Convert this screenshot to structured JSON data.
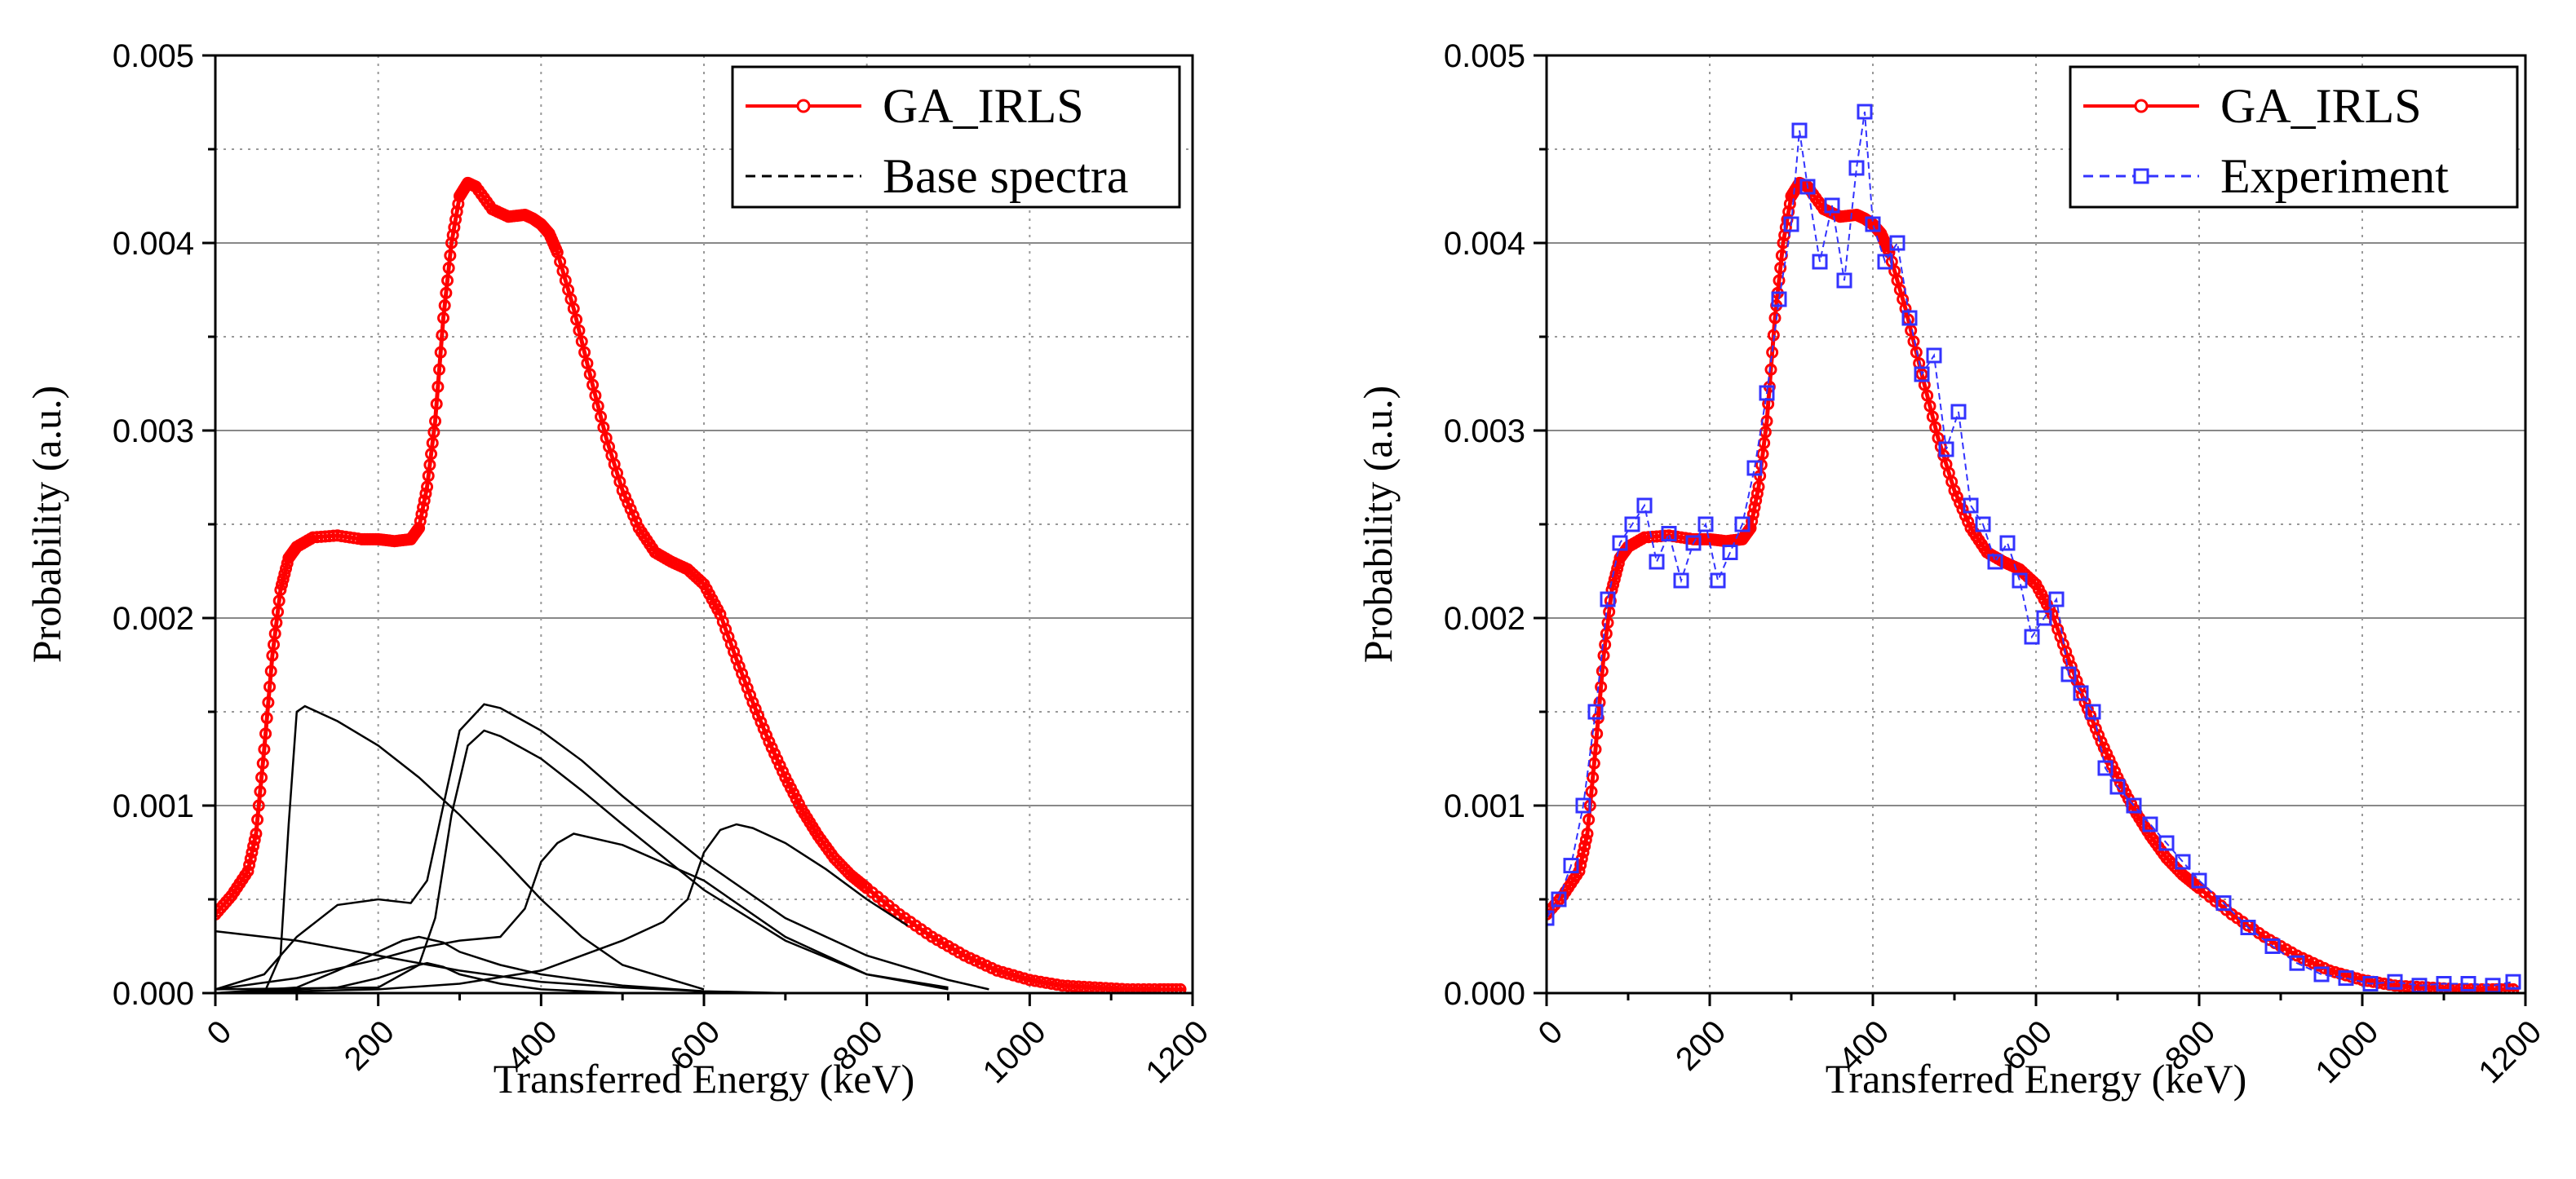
{
  "chart_data": [
    {
      "type": "line",
      "id": "left",
      "xlabel": "Transferred Energy (keV)",
      "ylabel": "Probability (a.u.)",
      "xlim": [
        0,
        1200
      ],
      "ylim": [
        0,
        0.005
      ],
      "xticks": [
        "0",
        "200",
        "400",
        "600",
        "800",
        "1000",
        "1200"
      ],
      "yticks": [
        "0.000",
        "0.001",
        "0.002",
        "0.003",
        "0.004",
        "0.005"
      ],
      "grid": true,
      "legend_position": "top-right",
      "legend": [
        {
          "label": "GA_IRLS",
          "style": "red-line-circle"
        },
        {
          "label": "Base spectra",
          "style": "black-dashed"
        }
      ],
      "series": [
        {
          "name": "GA_IRLS",
          "color": "#ff0000",
          "x": [
            0,
            20,
            40,
            50,
            60,
            70,
            80,
            90,
            100,
            120,
            150,
            180,
            200,
            220,
            240,
            250,
            260,
            270,
            280,
            290,
            300,
            310,
            320,
            340,
            360,
            380,
            390,
            400,
            410,
            420,
            440,
            460,
            480,
            500,
            520,
            540,
            560,
            580,
            600,
            620,
            640,
            660,
            680,
            700,
            720,
            740,
            760,
            780,
            800,
            840,
            880,
            920,
            960,
            1000,
            1040,
            1080,
            1120,
            1160,
            1190
          ],
          "y": [
            0.00042,
            0.00052,
            0.00065,
            0.00085,
            0.0013,
            0.0018,
            0.00215,
            0.00232,
            0.00238,
            0.00243,
            0.00244,
            0.00242,
            0.00242,
            0.00241,
            0.00242,
            0.00248,
            0.0027,
            0.00305,
            0.0036,
            0.004,
            0.00425,
            0.00432,
            0.0043,
            0.00418,
            0.00414,
            0.00415,
            0.00413,
            0.0041,
            0.00405,
            0.00395,
            0.00365,
            0.0033,
            0.00296,
            0.00268,
            0.00248,
            0.00235,
            0.0023,
            0.00226,
            0.00218,
            0.00202,
            0.00178,
            0.00155,
            0.00134,
            0.00115,
            0.00098,
            0.00084,
            0.00072,
            0.00063,
            0.00056,
            0.00042,
            0.0003,
            0.0002,
            0.00012,
            7e-05,
            4e-05,
            3e-05,
            2e-05,
            2e-05,
            2e-05
          ]
        },
        {
          "name": "Base spectrum 1",
          "color": "#000000",
          "x": [
            0,
            60,
            80,
            90,
            100,
            110,
            150,
            200,
            250,
            300,
            350,
            400,
            450,
            500,
            600
          ],
          "y": [
            0,
            0,
            0.0002,
            0.0009,
            0.0015,
            0.00153,
            0.00145,
            0.00132,
            0.00115,
            0.00095,
            0.00073,
            0.0005,
            0.0003,
            0.00015,
            2e-05
          ]
        },
        {
          "name": "Base spectrum 2",
          "color": "#000000",
          "x": [
            0,
            100,
            200,
            300,
            400,
            500,
            600,
            700
          ],
          "y": [
            0.00033,
            0.00028,
            0.0002,
            0.00012,
            6e-05,
            3e-05,
            1e-05,
            0
          ]
        },
        {
          "name": "Base spectrum 3",
          "color": "#000000",
          "x": [
            0,
            60,
            100,
            150,
            200,
            240,
            260,
            280,
            300,
            330,
            350,
            400,
            450,
            500,
            600,
            700,
            800,
            900,
            950
          ],
          "y": [
            2e-05,
            0.0001,
            0.0003,
            0.00047,
            0.0005,
            0.00048,
            0.0006,
            0.001,
            0.0014,
            0.00154,
            0.00152,
            0.0014,
            0.00124,
            0.00105,
            0.0007,
            0.0004,
            0.0002,
            7e-05,
            2e-05
          ]
        },
        {
          "name": "Base spectrum 4",
          "color": "#000000",
          "x": [
            0,
            200,
            250,
            270,
            290,
            310,
            330,
            350,
            400,
            450,
            500,
            600,
            700,
            800,
            900
          ],
          "y": [
            2e-05,
            3e-05,
            0.00015,
            0.0004,
            0.00095,
            0.00132,
            0.0014,
            0.00137,
            0.00125,
            0.00108,
            0.0009,
            0.00055,
            0.00028,
            0.0001,
            3e-05
          ]
        },
        {
          "name": "Base spectrum 5",
          "color": "#000000",
          "x": [
            0,
            100,
            200,
            250,
            300,
            350,
            380,
            400,
            420,
            440,
            500,
            600,
            700,
            800,
            900
          ],
          "y": [
            2e-05,
            8e-05,
            0.00018,
            0.00024,
            0.00028,
            0.0003,
            0.00045,
            0.0007,
            0.0008,
            0.00085,
            0.00079,
            0.0006,
            0.0003,
            0.0001,
            2e-05
          ]
        },
        {
          "name": "Base spectrum 6",
          "color": "#000000",
          "x": [
            0,
            200,
            300,
            400,
            500,
            550,
            580,
            600,
            620,
            640,
            660,
            700,
            750,
            800,
            850
          ],
          "y": [
            0,
            2e-05,
            5e-05,
            0.00012,
            0.00028,
            0.00038,
            0.0005,
            0.00075,
            0.00087,
            0.0009,
            0.00088,
            0.0008,
            0.00066,
            0.0005,
            0.00036
          ]
        },
        {
          "name": "Base spectrum 7",
          "color": "#000000",
          "x": [
            0,
            100,
            150,
            200,
            230,
            250,
            280,
            300,
            350,
            400,
            500,
            600
          ],
          "y": [
            0,
            3e-05,
            0.00012,
            0.00022,
            0.00028,
            0.0003,
            0.00027,
            0.00022,
            0.00015,
            0.0001,
            4e-05,
            1e-05
          ]
        },
        {
          "name": "Base spectrum 8",
          "color": "#000000",
          "x": [
            0,
            150,
            200,
            240,
            260,
            280,
            300,
            350,
            400,
            500
          ],
          "y": [
            0,
            3e-05,
            8e-05,
            0.00014,
            0.00016,
            0.00014,
            0.0001,
            5e-05,
            2e-05,
            0
          ]
        }
      ]
    },
    {
      "type": "line",
      "id": "right",
      "xlabel": "Transferred Energy (keV)",
      "ylabel": "Probability (a.u.)",
      "xlim": [
        0,
        1200
      ],
      "ylim": [
        0,
        0.005
      ],
      "xticks": [
        "0",
        "200",
        "400",
        "600",
        "800",
        "1000",
        "1200"
      ],
      "yticks": [
        "0.000",
        "0.001",
        "0.002",
        "0.003",
        "0.004",
        "0.005"
      ],
      "grid": true,
      "legend_position": "top-right",
      "legend": [
        {
          "label": "GA_IRLS",
          "style": "red-line-circle"
        },
        {
          "label": "Experiment",
          "style": "blue-dashed-square"
        }
      ],
      "series": [
        {
          "name": "GA_IRLS",
          "color": "#ff0000",
          "x": [
            0,
            20,
            40,
            50,
            60,
            70,
            80,
            90,
            100,
            120,
            150,
            180,
            200,
            220,
            240,
            250,
            260,
            270,
            280,
            290,
            300,
            310,
            320,
            340,
            360,
            380,
            390,
            400,
            410,
            420,
            440,
            460,
            480,
            500,
            520,
            540,
            560,
            580,
            600,
            620,
            640,
            660,
            680,
            700,
            720,
            740,
            760,
            780,
            800,
            840,
            880,
            920,
            960,
            1000,
            1040,
            1080,
            1120,
            1160,
            1190
          ],
          "y": [
            0.00042,
            0.00052,
            0.00065,
            0.00085,
            0.0013,
            0.0018,
            0.00215,
            0.00232,
            0.00238,
            0.00243,
            0.00244,
            0.00242,
            0.00242,
            0.00241,
            0.00242,
            0.00248,
            0.0027,
            0.00305,
            0.0036,
            0.004,
            0.00425,
            0.00432,
            0.0043,
            0.00418,
            0.00414,
            0.00415,
            0.00413,
            0.0041,
            0.00405,
            0.00395,
            0.00365,
            0.0033,
            0.00296,
            0.00268,
            0.00248,
            0.00235,
            0.0023,
            0.00226,
            0.00218,
            0.00202,
            0.00178,
            0.00155,
            0.00134,
            0.00115,
            0.00098,
            0.00084,
            0.00072,
            0.00063,
            0.00056,
            0.00042,
            0.0003,
            0.0002,
            0.00012,
            7e-05,
            4e-05,
            3e-05,
            2e-05,
            2e-05,
            2e-05
          ]
        },
        {
          "name": "Experiment",
          "color": "#3333ff",
          "x": [
            0,
            15,
            30,
            45,
            60,
            75,
            90,
            105,
            120,
            135,
            150,
            165,
            180,
            195,
            210,
            225,
            240,
            255,
            270,
            285,
            300,
            310,
            320,
            335,
            350,
            365,
            380,
            390,
            400,
            415,
            430,
            445,
            460,
            475,
            490,
            505,
            520,
            535,
            550,
            565,
            580,
            595,
            610,
            625,
            640,
            655,
            670,
            685,
            700,
            720,
            740,
            760,
            780,
            800,
            830,
            860,
            890,
            920,
            950,
            980,
            1010,
            1040,
            1070,
            1100,
            1130,
            1160,
            1185
          ],
          "y": [
            0.0004,
            0.0005,
            0.00068,
            0.001,
            0.0015,
            0.0021,
            0.0024,
            0.0025,
            0.0026,
            0.0023,
            0.00245,
            0.0022,
            0.0024,
            0.0025,
            0.0022,
            0.00235,
            0.0025,
            0.0028,
            0.0032,
            0.0037,
            0.0041,
            0.0046,
            0.0043,
            0.0039,
            0.0042,
            0.0038,
            0.0044,
            0.0047,
            0.0041,
            0.0039,
            0.004,
            0.0036,
            0.0033,
            0.0034,
            0.0029,
            0.0031,
            0.0026,
            0.0025,
            0.0023,
            0.0024,
            0.0022,
            0.0019,
            0.002,
            0.0021,
            0.0017,
            0.0016,
            0.0015,
            0.0012,
            0.0011,
            0.001,
            0.0009,
            0.0008,
            0.0007,
            0.0006,
            0.00048,
            0.00035,
            0.00025,
            0.00016,
            0.0001,
            8e-05,
            5e-05,
            6e-05,
            4e-05,
            5e-05,
            5e-05,
            4e-05,
            6e-05
          ]
        }
      ]
    }
  ]
}
